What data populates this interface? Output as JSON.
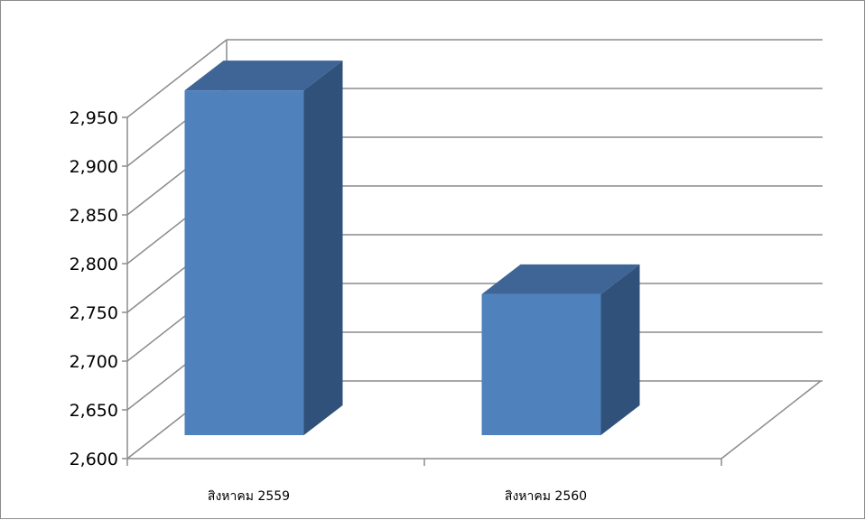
{
  "chart_data": {
    "type": "bar",
    "title": "",
    "xlabel": "",
    "ylabel": "",
    "categories": [
      "สิงหาคม 2559",
      "สิงหาคม 2560"
    ],
    "values": [
      2923,
      2714
    ],
    "ylim": [
      2600,
      2950
    ],
    "yticks": [
      2600,
      2650,
      2700,
      2750,
      2800,
      2850,
      2900,
      2950
    ],
    "ytick_labels": [
      "2,600",
      "2,650",
      "2,700",
      "2,750",
      "2,800",
      "2,850",
      "2,900",
      "2,950"
    ],
    "grid": true,
    "legend": "none",
    "style": "3d-column",
    "colors": {
      "bar_front": "#4F81BD",
      "bar_side": "#30527A",
      "bar_top": "#3E6595",
      "gridline": "#8c8c8c",
      "axis": "#8c8c8c"
    }
  }
}
